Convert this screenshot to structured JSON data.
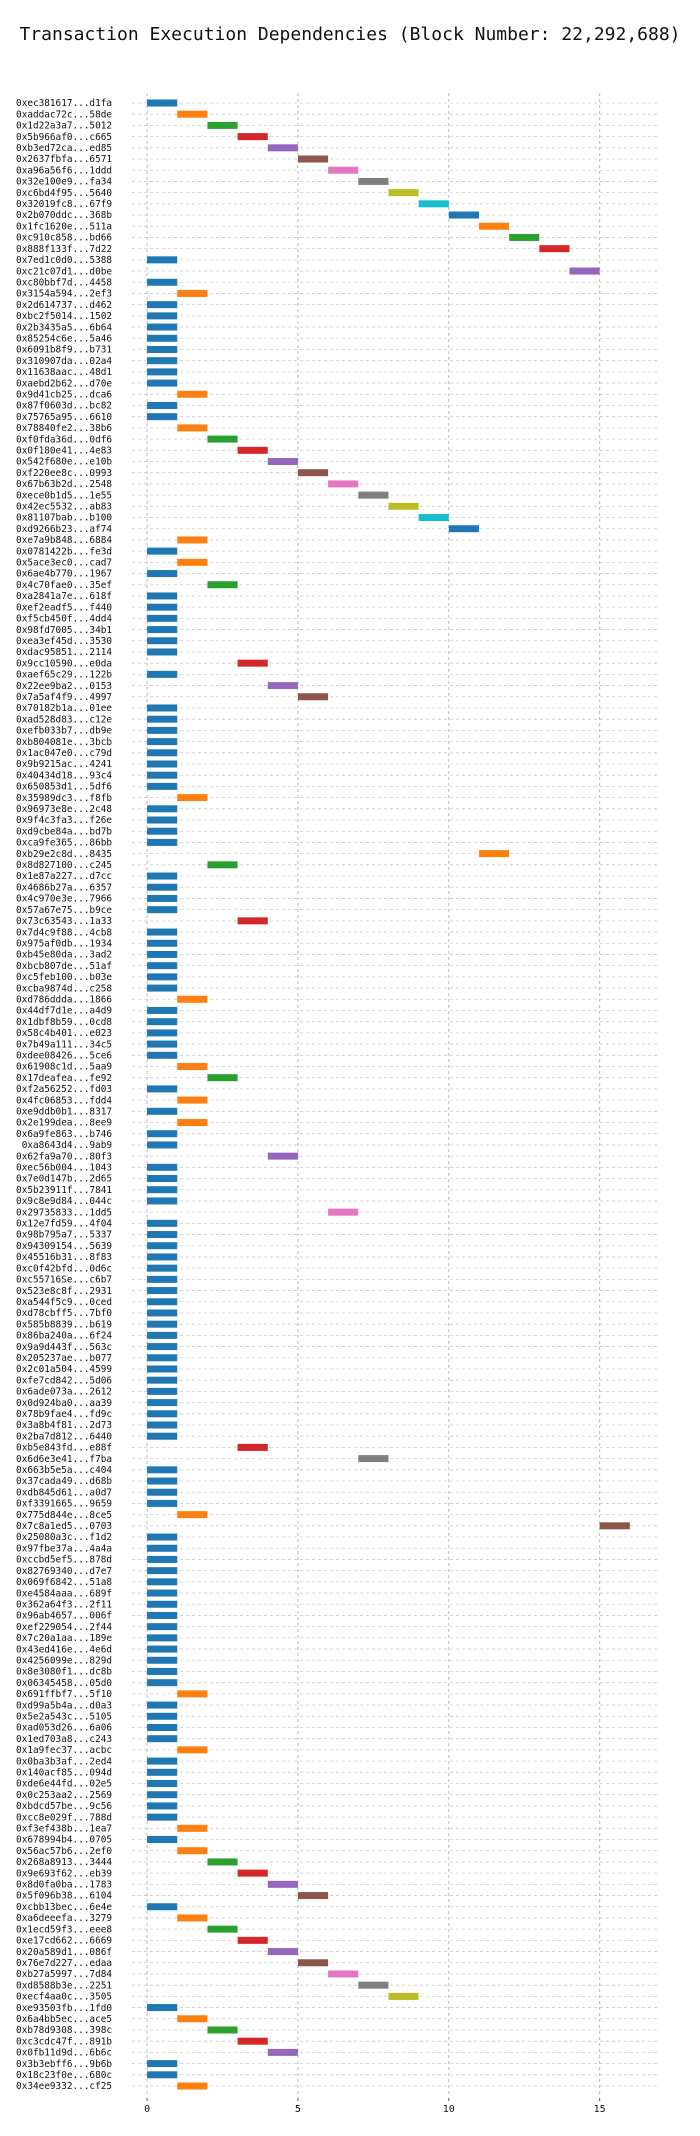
{
  "chart_data": {
    "type": "gantt",
    "title": "Transaction Execution Dependencies (Block Number: 22,292,688)",
    "xlabel": "",
    "ylabel": "",
    "xlim": [
      -0.5,
      17
    ],
    "xticks": [
      0,
      5,
      10,
      15
    ],
    "grid": true,
    "colors": [
      "#1f77b4",
      "#ff7f0e",
      "#2ca02c",
      "#d62728",
      "#9467bd",
      "#8c564b",
      "#e377c2",
      "#7f7f7f",
      "#bcbd22",
      "#17becf"
    ],
    "transactions": [
      {
        "tx": "0xec381617...d1fa",
        "start": 0
      },
      {
        "tx": "0xaddac72c...58de",
        "start": 1
      },
      {
        "tx": "0x1d22a3a7...5012",
        "start": 2
      },
      {
        "tx": "0x5b966af0...c665",
        "start": 3
      },
      {
        "tx": "0xb3ed72ca...ed85",
        "start": 4
      },
      {
        "tx": "0x2637fbfa...6571",
        "start": 5
      },
      {
        "tx": "0xa96a56f6...1ddd",
        "start": 6
      },
      {
        "tx": "0x32e100e9...fa34",
        "start": 7
      },
      {
        "tx": "0xc6bd4f95...5640",
        "start": 8
      },
      {
        "tx": "0x32019fc8...67f9",
        "start": 9
      },
      {
        "tx": "0x2b070ddc...368b",
        "start": 10
      },
      {
        "tx": "0x1fc1620e...511a",
        "start": 11
      },
      {
        "tx": "0xc910c858...bd66",
        "start": 12
      },
      {
        "tx": "0x888f133f...7d22",
        "start": 13
      },
      {
        "tx": "0x7ed1c0d0...5388",
        "start": 0
      },
      {
        "tx": "0xc21c07d1...d0be",
        "start": 14
      },
      {
        "tx": "0xc80bbf7d...4458",
        "start": 0
      },
      {
        "tx": "0x3154a594...2ef3",
        "start": 1
      },
      {
        "tx": "0x2d614737...d462",
        "start": 0
      },
      {
        "tx": "0xbc2f5014...1502",
        "start": 0
      },
      {
        "tx": "0x2b3435a5...6b64",
        "start": 0
      },
      {
        "tx": "0x85254c6e...5a46",
        "start": 0
      },
      {
        "tx": "0x6091b8f9...b731",
        "start": 0
      },
      {
        "tx": "0x310907da...02a4",
        "start": 0
      },
      {
        "tx": "0x11638aac...48d1",
        "start": 0
      },
      {
        "tx": "0xaebd2b62...d70e",
        "start": 0
      },
      {
        "tx": "0x9d41cb25...dca6",
        "start": 1
      },
      {
        "tx": "0x87f0603d...bc82",
        "start": 0
      },
      {
        "tx": "0x75765a95...6610",
        "start": 0
      },
      {
        "tx": "0x78840fe2...38b6",
        "start": 1
      },
      {
        "tx": "0xf0fda36d...0df6",
        "start": 2
      },
      {
        "tx": "0x0f180e41...4e83",
        "start": 3
      },
      {
        "tx": "0x542f680e...e10b",
        "start": 4
      },
      {
        "tx": "0xf220ee8c...0993",
        "start": 5
      },
      {
        "tx": "0x67b63b2d...2548",
        "start": 6
      },
      {
        "tx": "0xece0b1d5...1e55",
        "start": 7
      },
      {
        "tx": "0x42ec5532...ab83",
        "start": 8
      },
      {
        "tx": "0x81107bab...b100",
        "start": 9
      },
      {
        "tx": "0xd9266b23...af74",
        "start": 10
      },
      {
        "tx": "0xe7a9b848...6884",
        "start": 1
      },
      {
        "tx": "0x0781422b...fe3d",
        "start": 0
      },
      {
        "tx": "0x5ace3ec0...cad7",
        "start": 1
      },
      {
        "tx": "0x6ae4b770...1967",
        "start": 0
      },
      {
        "tx": "0x4c70fae0...35ef",
        "start": 2
      },
      {
        "tx": "0xa2841a7e...618f",
        "start": 0
      },
      {
        "tx": "0xef2eadf5...f440",
        "start": 0
      },
      {
        "tx": "0xf5cb450f...4dd4",
        "start": 0
      },
      {
        "tx": "0x98fd7005...34b1",
        "start": 0
      },
      {
        "tx": "0xea3ef45d...3530",
        "start": 0
      },
      {
        "tx": "0xdac95851...2114",
        "start": 0
      },
      {
        "tx": "0x9cc10590...e0da",
        "start": 3
      },
      {
        "tx": "0xaef65c29...122b",
        "start": 0
      },
      {
        "tx": "0x22ee9ba2...0153",
        "start": 4
      },
      {
        "tx": "0x7a5af4f9...4997",
        "start": 5
      },
      {
        "tx": "0x70182b1a...01ee",
        "start": 0
      },
      {
        "tx": "0xad528d83...c12e",
        "start": 0
      },
      {
        "tx": "0xefb033b7...db9e",
        "start": 0
      },
      {
        "tx": "0xb804081e...3bcb",
        "start": 0
      },
      {
        "tx": "0x1ac047e0...c79d",
        "start": 0
      },
      {
        "tx": "0x9b9215ac...4241",
        "start": 0
      },
      {
        "tx": "0x40434d18...93c4",
        "start": 0
      },
      {
        "tx": "0x650853d1...5df6",
        "start": 0
      },
      {
        "tx": "0x35989dc3...f8fb",
        "start": 1
      },
      {
        "tx": "0x96973e8e...2c48",
        "start": 0
      },
      {
        "tx": "0x9f4c3fa3...f26e",
        "start": 0
      },
      {
        "tx": "0xd9cbe84a...bd7b",
        "start": 0
      },
      {
        "tx": "0xca9fe365...86bb",
        "start": 0
      },
      {
        "tx": "0xb29e2c8d...8435",
        "start": 11
      },
      {
        "tx": "0x8d827100...c245",
        "start": 2
      },
      {
        "tx": "0x1e87a227...d7cc",
        "start": 0
      },
      {
        "tx": "0x4686b27a...6357",
        "start": 0
      },
      {
        "tx": "0x4c970e3e...7966",
        "start": 0
      },
      {
        "tx": "0x57a67e75...b9ce",
        "start": 0
      },
      {
        "tx": "0x73c63543...1a33",
        "start": 3
      },
      {
        "tx": "0x7d4c9f88...4cb8",
        "start": 0
      },
      {
        "tx": "0x975af0db...1934",
        "start": 0
      },
      {
        "tx": "0xb45e80da...3ad2",
        "start": 0
      },
      {
        "tx": "0xbcb807de...51af",
        "start": 0
      },
      {
        "tx": "0xc5feb100...b03e",
        "start": 0
      },
      {
        "tx": "0xcba9874d...c258",
        "start": 0
      },
      {
        "tx": "0xd786ddda...1866",
        "start": 1
      },
      {
        "tx": "0x44df7d1e...a4d9",
        "start": 0
      },
      {
        "tx": "0x1dbf8b59...0cd8",
        "start": 0
      },
      {
        "tx": "0x58c4b401...e023",
        "start": 0
      },
      {
        "tx": "0x7b49a111...34c5",
        "start": 0
      },
      {
        "tx": "0xdee08426...5ce6",
        "start": 0
      },
      {
        "tx": "0x61908c1d...5aa9",
        "start": 1
      },
      {
        "tx": "0x17deafea...fe92",
        "start": 2
      },
      {
        "tx": "0xf2a56252...fd03",
        "start": 0
      },
      {
        "tx": "0x4fc06853...fdd4",
        "start": 1
      },
      {
        "tx": "0xe9ddb0b1...8317",
        "start": 0
      },
      {
        "tx": "0x2e199dea...8ee9",
        "start": 1
      },
      {
        "tx": "0x6a9fe863...b746",
        "start": 0
      },
      {
        "tx": "0xa8643d4...9ab9",
        "start": 0
      },
      {
        "tx": "0x62fa9a70...80f3",
        "start": 4
      },
      {
        "tx": "0xec56b004...1043",
        "start": 0
      },
      {
        "tx": "0x7e0d147b...2d65",
        "start": 0
      },
      {
        "tx": "0x5b23911f...7841",
        "start": 0
      },
      {
        "tx": "0x9c8e9d84...044c",
        "start": 0
      },
      {
        "tx": "0x29735833...1dd5",
        "start": 6
      },
      {
        "tx": "0x12e7fd59...4f04",
        "start": 0
      },
      {
        "tx": "0x98b795a7...5337",
        "start": 0
      },
      {
        "tx": "0x94309154...5639",
        "start": 0
      },
      {
        "tx": "0x45516b31...8f83",
        "start": 0
      },
      {
        "tx": "0xc0f42bfd...0d6c",
        "start": 0
      },
      {
        "tx": "0xc55716Se...c6b7",
        "start": 0
      },
      {
        "tx": "0x523e8c8f...2931",
        "start": 0
      },
      {
        "tx": "0xa544f5c9...0ced",
        "start": 0
      },
      {
        "tx": "0xd78cbff5...7bf0",
        "start": 0
      },
      {
        "tx": "0x585b8839...b619",
        "start": 0
      },
      {
        "tx": "0x86ba240a...6f24",
        "start": 0
      },
      {
        "tx": "0x9a9d443f...563c",
        "start": 0
      },
      {
        "tx": "0x205237ae...b077",
        "start": 0
      },
      {
        "tx": "0x2c01a504...4599",
        "start": 0
      },
      {
        "tx": "0xfe7cd842...5d06",
        "start": 0
      },
      {
        "tx": "0x6ade073a...2612",
        "start": 0
      },
      {
        "tx": "0x0d924ba0...aa39",
        "start": 0
      },
      {
        "tx": "0x78b9fae4...fd9c",
        "start": 0
      },
      {
        "tx": "0x3a8b4f81...2d73",
        "start": 0
      },
      {
        "tx": "0x2ba7d812...6440",
        "start": 0
      },
      {
        "tx": "0xb5e843fd...e88f",
        "start": 3
      },
      {
        "tx": "0x6d6e3e41...f7ba",
        "start": 7
      },
      {
        "tx": "0x663b5e5a...c404",
        "start": 0
      },
      {
        "tx": "0x37cada49...d68b",
        "start": 0
      },
      {
        "tx": "0xdb845d61...a0d7",
        "start": 0
      },
      {
        "tx": "0xf3391665...9659",
        "start": 0
      },
      {
        "tx": "0x775d844e...8ce5",
        "start": 1
      },
      {
        "tx": "0x7c8a1ed5...0703",
        "start": 15
      },
      {
        "tx": "0x25080a3c...f1d2",
        "start": 0
      },
      {
        "tx": "0x97fbe37a...4a4a",
        "start": 0
      },
      {
        "tx": "0xccbd5ef5...878d",
        "start": 0
      },
      {
        "tx": "0x82769340...d7e7",
        "start": 0
      },
      {
        "tx": "0x069f6842...51a8",
        "start": 0
      },
      {
        "tx": "0xe4584aaa...689f",
        "start": 0
      },
      {
        "tx": "0x362a64f3...2f11",
        "start": 0
      },
      {
        "tx": "0x96ab4657...006f",
        "start": 0
      },
      {
        "tx": "0xef229054...2f44",
        "start": 0
      },
      {
        "tx": "0x7c20a1aa...189e",
        "start": 0
      },
      {
        "tx": "0x43ed416e...4e6d",
        "start": 0
      },
      {
        "tx": "0x4256099e...829d",
        "start": 0
      },
      {
        "tx": "0x8e3080f1...dc8b",
        "start": 0
      },
      {
        "tx": "0x06345458...05d0",
        "start": 0
      },
      {
        "tx": "0x691ffbf7...5f10",
        "start": 1
      },
      {
        "tx": "0xd99a5b4a...d0a3",
        "start": 0
      },
      {
        "tx": "0x5e2a543c...5105",
        "start": 0
      },
      {
        "tx": "0xad053d26...6a06",
        "start": 0
      },
      {
        "tx": "0x1ed703a8...c243",
        "start": 0
      },
      {
        "tx": "0x1a9fec37...acbc",
        "start": 1
      },
      {
        "tx": "0x0ba3b3af...2ed4",
        "start": 0
      },
      {
        "tx": "0x140acf85...094d",
        "start": 0
      },
      {
        "tx": "0xde6e44fd...02e5",
        "start": 0
      },
      {
        "tx": "0x0c253aa2...2569",
        "start": 0
      },
      {
        "tx": "0xbdcd57be...9c56",
        "start": 0
      },
      {
        "tx": "0xcc8e029f...788d",
        "start": 0
      },
      {
        "tx": "0xf3ef438b...1ea7",
        "start": 1
      },
      {
        "tx": "0x678994b4...0705",
        "start": 0
      },
      {
        "tx": "0x56ac57b6...2ef0",
        "start": 1
      },
      {
        "tx": "0x268a8913...3444",
        "start": 2
      },
      {
        "tx": "0x9e693f62...eb39",
        "start": 3
      },
      {
        "tx": "0x8d0fa0ba...1783",
        "start": 4
      },
      {
        "tx": "0x5f096b38...6104",
        "start": 5
      },
      {
        "tx": "0xcbb13bec...6e4e",
        "start": 0
      },
      {
        "tx": "0xa6deeefa...3279",
        "start": 1
      },
      {
        "tx": "0x1ecd59f3...eee8",
        "start": 2
      },
      {
        "tx": "0xe17cd662...6669",
        "start": 3
      },
      {
        "tx": "0x20a589d1...086f",
        "start": 4
      },
      {
        "tx": "0x76e7d227...edaa",
        "start": 5
      },
      {
        "tx": "0xb27a5997...7d84",
        "start": 6
      },
      {
        "tx": "0xd8588b3e...2251",
        "start": 7
      },
      {
        "tx": "0xecf4aa0c...3505",
        "start": 8
      },
      {
        "tx": "0xe93503fb...1fd0",
        "start": 0
      },
      {
        "tx": "0x6a4bb5ec...ace5",
        "start": 1
      },
      {
        "tx": "0xb78d9308...398c",
        "start": 2
      },
      {
        "tx": "0xc3cdc47f...891b",
        "start": 3
      },
      {
        "tx": "0x0fb11d9d...6b6c",
        "start": 4
      },
      {
        "tx": "0x3b3ebff6...9b6b",
        "start": 0
      },
      {
        "tx": "0x18c23f0e...680c",
        "start": 0
      },
      {
        "tx": "0x34ee9332...cf25",
        "start": 1
      }
    ]
  }
}
